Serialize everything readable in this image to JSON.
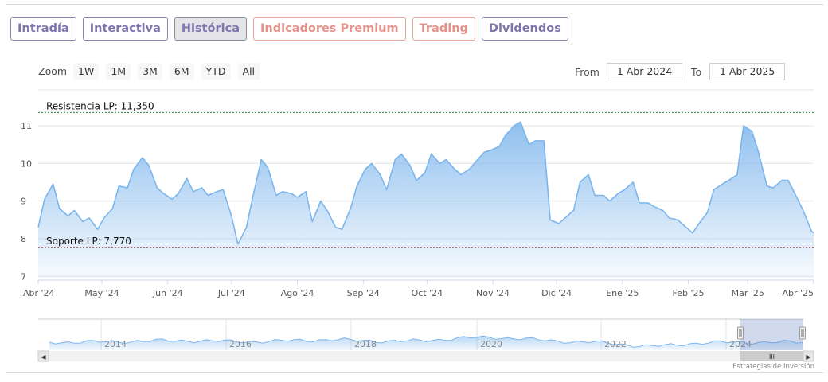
{
  "tabs": [
    {
      "label": "Intradía",
      "style": "purple"
    },
    {
      "label": "Interactiva",
      "style": "purple"
    },
    {
      "label": "Histórica",
      "style": "active"
    },
    {
      "label": "Indicadores Premium",
      "style": "salmon"
    },
    {
      "label": "Trading",
      "style": "salmon"
    },
    {
      "label": "Dividendos",
      "style": "purple"
    }
  ],
  "zoom": {
    "label": "Zoom",
    "buttons": [
      "1W",
      "1M",
      "3M",
      "6M",
      "YTD",
      "All"
    ]
  },
  "range": {
    "from_label": "From",
    "from_value": "1 Abr 2024",
    "to_label": "To",
    "to_value": "1 Abr 2025"
  },
  "colors": {
    "line": "#7cb5ec",
    "resistance": "#2e7d32",
    "support": "#8b1a1a",
    "tab_purple": "#7d76ad",
    "tab_salmon": "#e4938a"
  },
  "chart_data": {
    "type": "area",
    "x_tick_labels": [
      "Abr '24",
      "May '24",
      "Jun '24",
      "Jul '24",
      "Ago '24",
      "Sep '24",
      "Oct '24",
      "Nov '24",
      "Dic '24",
      "Ene '25",
      "Feb '25",
      "Mar '25",
      "Abr '25"
    ],
    "y_tick_labels": [
      "7",
      "8",
      "9",
      "10",
      "11"
    ],
    "ylim": [
      6.9,
      11.95
    ],
    "grid": true,
    "resistance": {
      "label": "Resistencia LP: 11,350",
      "value": 11.35
    },
    "support": {
      "label": "Soporte LP: 7,770",
      "value": 7.77
    },
    "series": [
      {
        "x": [
          "2024-04-01",
          "2024-04-04",
          "2024-04-08",
          "2024-04-11",
          "2024-04-15",
          "2024-04-18",
          "2024-04-22",
          "2024-04-25",
          "2024-04-29",
          "2024-05-02",
          "2024-05-06",
          "2024-05-09",
          "2024-05-13",
          "2024-05-16",
          "2024-05-20",
          "2024-05-23",
          "2024-05-27",
          "2024-05-30",
          "2024-06-03",
          "2024-06-06",
          "2024-06-10",
          "2024-06-13",
          "2024-06-17",
          "2024-06-20",
          "2024-06-24",
          "2024-06-27",
          "2024-07-01",
          "2024-07-04",
          "2024-07-08",
          "2024-07-11",
          "2024-07-15",
          "2024-07-18",
          "2024-07-22",
          "2024-07-25",
          "2024-07-29",
          "2024-08-01",
          "2024-08-05",
          "2024-08-08",
          "2024-08-12",
          "2024-08-15",
          "2024-08-19",
          "2024-08-22",
          "2024-08-26",
          "2024-08-29",
          "2024-09-02",
          "2024-09-05",
          "2024-09-09",
          "2024-09-12",
          "2024-09-16",
          "2024-09-19",
          "2024-09-23",
          "2024-09-26",
          "2024-09-30",
          "2024-10-03",
          "2024-10-07",
          "2024-10-10",
          "2024-10-14",
          "2024-10-17",
          "2024-10-21",
          "2024-10-24",
          "2024-10-28",
          "2024-10-31",
          "2024-11-04",
          "2024-11-07",
          "2024-11-11",
          "2024-11-14",
          "2024-11-18",
          "2024-11-21",
          "2024-11-25",
          "2024-11-28",
          "2024-12-02",
          "2024-12-05",
          "2024-12-09",
          "2024-12-12",
          "2024-12-16",
          "2024-12-19",
          "2024-12-23",
          "2024-12-26",
          "2024-12-30",
          "2025-01-02",
          "2025-01-06",
          "2025-01-09",
          "2025-01-13",
          "2025-01-16",
          "2025-01-20",
          "2025-01-23",
          "2025-01-27",
          "2025-01-30",
          "2025-02-03",
          "2025-02-06",
          "2025-02-10",
          "2025-02-13",
          "2025-02-17",
          "2025-02-20",
          "2025-02-24",
          "2025-02-27",
          "2025-03-03",
          "2025-03-06",
          "2025-03-10",
          "2025-03-13",
          "2025-03-17",
          "2025-03-20",
          "2025-03-24",
          "2025-03-27",
          "2025-03-31",
          "2025-04-01"
        ],
        "values": [
          8.3,
          9.05,
          9.45,
          8.8,
          8.6,
          8.75,
          8.45,
          8.55,
          8.25,
          8.55,
          8.8,
          9.4,
          9.35,
          9.85,
          10.15,
          9.95,
          9.35,
          9.2,
          9.05,
          9.2,
          9.6,
          9.25,
          9.35,
          9.15,
          9.25,
          9.3,
          8.6,
          7.85,
          8.3,
          9.1,
          10.1,
          9.9,
          9.15,
          9.25,
          9.2,
          9.1,
          9.25,
          8.45,
          9.0,
          8.75,
          8.3,
          8.25,
          8.8,
          9.4,
          9.85,
          10.0,
          9.7,
          9.3,
          10.1,
          10.25,
          9.95,
          9.55,
          9.75,
          10.25,
          10.0,
          10.1,
          9.85,
          9.7,
          9.85,
          10.05,
          10.3,
          10.35,
          10.45,
          10.75,
          11.0,
          11.1,
          10.5,
          10.6,
          10.6,
          8.5,
          8.4,
          8.55,
          8.75,
          9.5,
          9.7,
          9.15,
          9.15,
          9.0,
          9.2,
          9.3,
          9.5,
          8.95,
          8.95,
          8.85,
          8.75,
          8.55,
          8.5,
          8.35,
          8.15,
          8.4,
          8.7,
          9.3,
          9.45,
          9.55,
          9.7,
          11.0,
          10.85,
          10.3,
          9.4,
          9.35,
          9.55,
          9.55,
          9.1,
          8.75,
          8.2,
          8.15
        ]
      }
    ]
  },
  "navigator": {
    "year_labels": [
      "2014",
      "2016",
      "2018",
      "2020",
      "2022",
      "2024"
    ],
    "handle_glyph": "III",
    "left_arrow": "◀",
    "right_arrow": "▶"
  },
  "credit": "Estrategias de Inversión"
}
